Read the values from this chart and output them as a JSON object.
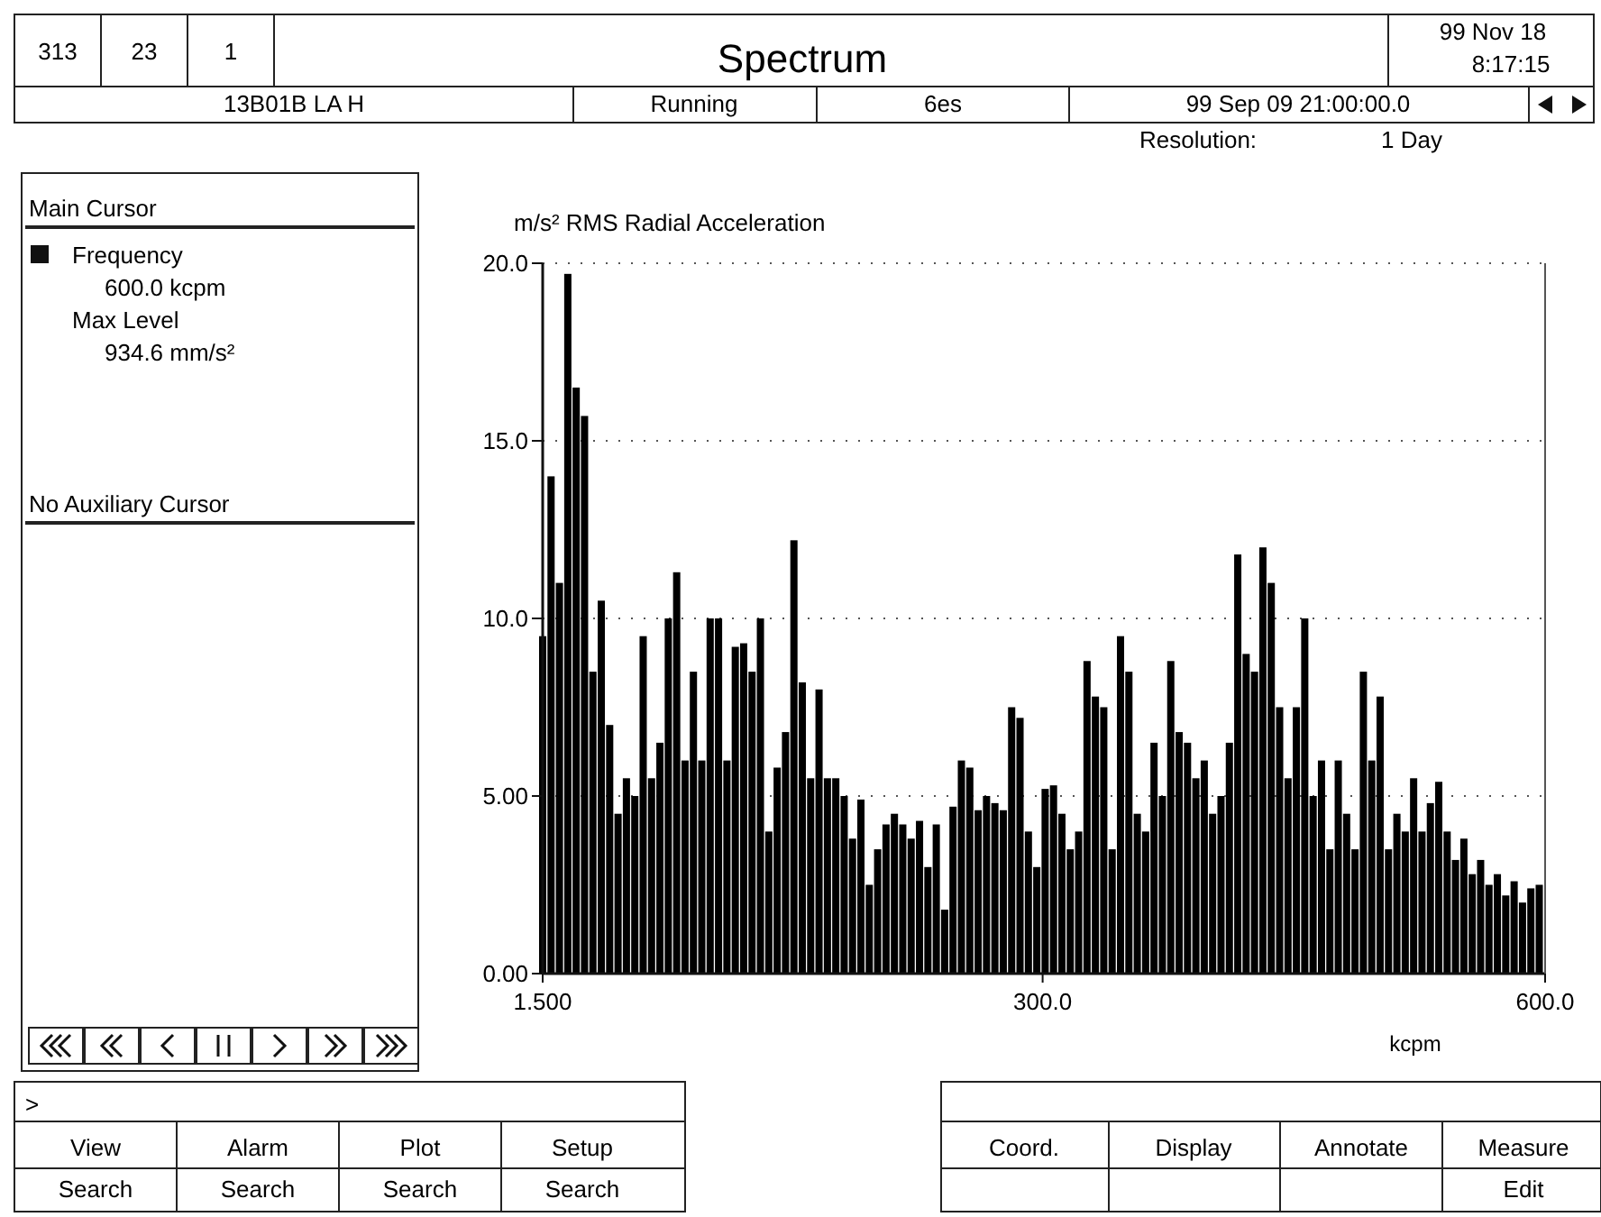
{
  "chart_data": {
    "type": "bar",
    "title": "Spectrum",
    "ylabel": "m/s² RMS Radial Acceleration",
    "xlabel": "kcpm",
    "x": [
      1.5,
      6.5,
      11.5,
      16.5,
      21.5,
      26.5,
      31.5,
      36.5,
      41.5,
      46.5,
      51.5,
      56.5,
      61.5,
      66.5,
      71.5,
      76.5,
      81.5,
      86.5,
      91.5,
      96.5,
      101.5,
      106.5,
      111.5,
      116.5,
      121.5,
      126.5,
      131.5,
      136.5,
      141.5,
      146.5,
      151.5,
      156.5,
      161.5,
      166.5,
      171.5,
      176.5,
      181.5,
      186.5,
      191.5,
      196.5,
      201.5,
      206.5,
      211.5,
      216.5,
      221.5,
      226.5,
      231.5,
      236.5,
      241.5,
      246.5,
      251.5,
      256.5,
      261.5,
      266.5,
      271.5,
      276.5,
      281.5,
      286.5,
      291.5,
      296.5,
      301.5,
      306.5,
      311.5,
      316.5,
      321.5,
      326.5,
      331.5,
      336.5,
      341.5,
      346.5,
      351.5,
      356.5,
      361.5,
      366.5,
      371.5,
      376.5,
      381.5,
      386.5,
      391.5,
      396.5,
      401.5,
      406.5,
      411.5,
      416.5,
      421.5,
      426.5,
      431.5,
      436.5,
      441.5,
      446.5,
      451.5,
      456.5,
      461.5,
      466.5,
      471.5,
      476.5,
      481.5,
      486.5,
      491.5,
      496.5,
      501.5,
      506.5,
      511.5,
      516.5,
      521.5,
      526.5,
      531.5,
      536.5,
      541.5,
      546.5,
      551.5,
      556.5,
      561.5,
      566.5,
      571.5,
      576.5,
      581.5,
      586.5,
      591.5,
      596.5
    ],
    "values": [
      9.5,
      14,
      11,
      19.7,
      16.5,
      15.7,
      8.5,
      10.5,
      7,
      4.5,
      5.5,
      5,
      9.5,
      5.5,
      6.5,
      10,
      11.3,
      6,
      8.5,
      6,
      10,
      10,
      6,
      9.2,
      9.3,
      8.5,
      10,
      4,
      5.8,
      6.8,
      12.2,
      8.2,
      5.5,
      8,
      5.5,
      5.5,
      5,
      3.8,
      4.9,
      2.5,
      3.5,
      4.2,
      4.5,
      4.2,
      3.8,
      4.3,
      3,
      4.2,
      1.8,
      4.7,
      6,
      5.8,
      4.6,
      5,
      4.8,
      4.6,
      7.5,
      7.2,
      4,
      3,
      5.2,
      5.3,
      4.5,
      3.5,
      4,
      8.8,
      7.8,
      7.5,
      3.5,
      9.5,
      8.5,
      4.5,
      4,
      6.5,
      5,
      8.8,
      6.8,
      6.5,
      5.5,
      6,
      4.5,
      5,
      6.5,
      11.8,
      9,
      8.5,
      12,
      11,
      7.5,
      5.5,
      7.5,
      10,
      5,
      6,
      3.5,
      6,
      4.5,
      3.5,
      8.5,
      6,
      7.8,
      3.5,
      4.5,
      4,
      5.5,
      4,
      4.8,
      5.4,
      4,
      3.2,
      3.8,
      2.8,
      3.2,
      2.5,
      2.8,
      2.2,
      2.6,
      2,
      2.4,
      2.5
    ],
    "color": "#000000",
    "xlim": [
      1.5,
      600
    ],
    "xticks": [
      {
        "value": 1.5,
        "label": "1.500"
      },
      {
        "value": 300,
        "label": "300.0"
      },
      {
        "value": 600,
        "label": "600.0"
      }
    ],
    "ylim": [
      0,
      20
    ],
    "yticks": [
      {
        "value": 0,
        "label": "0.00"
      },
      {
        "value": 5,
        "label": "5.00"
      },
      {
        "value": 10,
        "label": "10.0"
      },
      {
        "value": 15,
        "label": "15.0"
      },
      {
        "value": 20,
        "label": "20.0"
      }
    ],
    "grid": "y",
    "annotations": [
      "313",
      "23",
      "1",
      "99 Nov 18",
      "8:17:15",
      "13B01B LA H",
      "Running",
      "6es",
      "99 Sep 09 21:00:00.0",
      "Resolution:",
      "1 Day",
      "Main Cursor",
      "Frequency",
      "600.0 kcpm",
      "Max Level",
      "934.6 mm/s²",
      "No Auxiliary Cursor",
      ">",
      "View",
      "Search",
      "Alarm",
      "Search",
      "Plot",
      "Search",
      "Setup",
      "Search",
      "Coord.",
      "Display",
      "Annotate",
      "Measure",
      "Edit"
    ]
  }
}
